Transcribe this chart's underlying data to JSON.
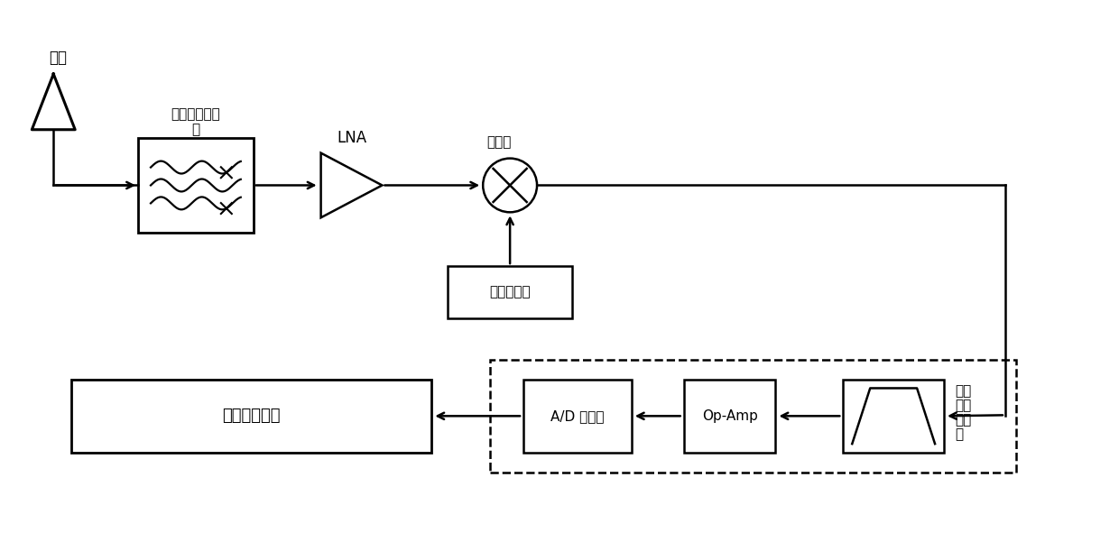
{
  "bg_color": "#ffffff",
  "line_color": "#000000",
  "antenna_label": "天线",
  "bpf_label_line1": "高频带通滤波",
  "bpf_label_line2": "器",
  "lna_label": "LNA",
  "mixer_label": "混频器",
  "lo_label": "本地振荡器",
  "active_bpf_label1": "有源",
  "active_bpf_label2": "带通",
  "active_bpf_label3": "滤波",
  "active_bpf_label4": "器",
  "opamp_label": "Op-Amp",
  "adc_label": "A/D 转换器",
  "digital_label": "数字基带模块"
}
